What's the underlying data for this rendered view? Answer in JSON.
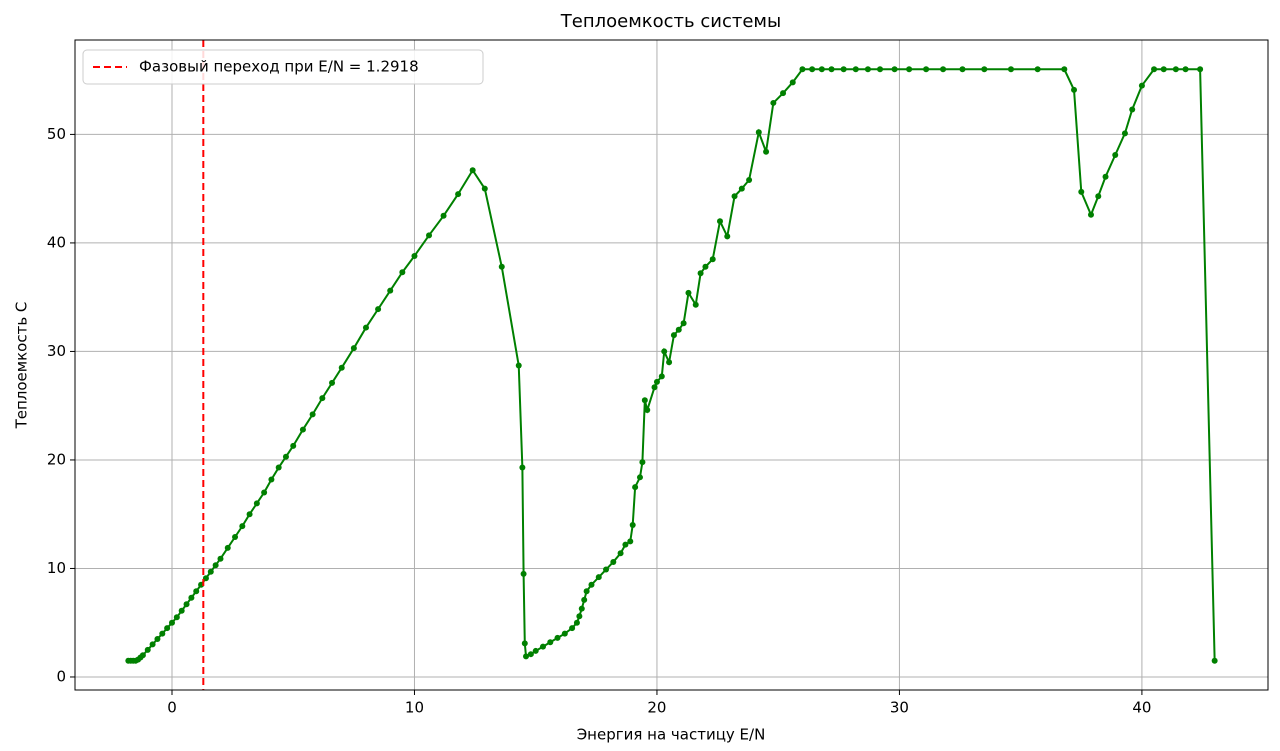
{
  "chart_data": {
    "type": "line",
    "title": "Теплоемкость системы",
    "x_label": "Энергия на частицу E/N",
    "y_label": "Теплоемкость C",
    "xlim": [
      -4.0,
      45.2
    ],
    "ylim": [
      -1.2,
      58.7
    ],
    "xticks": [
      0,
      10,
      20,
      30,
      40
    ],
    "yticks": [
      0,
      10,
      20,
      30,
      40,
      50
    ],
    "grid": true,
    "legend": "upper left",
    "vline": {
      "x": 1.2918,
      "name": "Фазовый переход при E/N = 1.2918",
      "color": "#ff0000"
    },
    "x": [
      -1.8,
      -1.7,
      -1.6,
      -1.5,
      -1.4,
      -1.3,
      -1.2,
      -1.0,
      -0.8,
      -0.6,
      -0.4,
      -0.2,
      0,
      0.2,
      0.4,
      0.6,
      0.8,
      1.0,
      1.2,
      1.4,
      1.6,
      1.8,
      2.0,
      2.3,
      2.6,
      2.9,
      3.2,
      3.5,
      3.8,
      4.1,
      4.4,
      4.7,
      5.0,
      5.4,
      5.8,
      6.2,
      6.6,
      7.0,
      7.5,
      8.0,
      8.5,
      9.0,
      9.5,
      10.0,
      10.6,
      11.2,
      11.8,
      12.4,
      12.9,
      13.6,
      14.3,
      14.45,
      14.5,
      14.55,
      14.6,
      14.8,
      15.0,
      15.3,
      15.6,
      15.9,
      16.2,
      16.5,
      16.7,
      16.8,
      16.9,
      17.0,
      17.1,
      17.3,
      17.6,
      17.9,
      18.2,
      18.5,
      18.7,
      18.9,
      19.0,
      19.1,
      19.3,
      19.4,
      19.5,
      19.6,
      19.9,
      20.0,
      20.2,
      20.3,
      20.5,
      20.7,
      20.9,
      21.1,
      21.3,
      21.6,
      21.8,
      22.0,
      22.3,
      22.6,
      22.9,
      23.2,
      23.5,
      23.8,
      24.2,
      24.5,
      24.8,
      25.2,
      25.6,
      26.0,
      26.4,
      26.8,
      27.2,
      27.7,
      28.2,
      28.7,
      29.2,
      29.8,
      30.4,
      31.1,
      31.8,
      32.6,
      33.5,
      34.6,
      35.7,
      36.8,
      37.2,
      37.5,
      37.9,
      38.2,
      38.5,
      38.9,
      39.3,
      39.6,
      40.0,
      40.5,
      40.9,
      41.4,
      41.8,
      42.4,
      43.0
    ],
    "series": [
      {
        "name": "C",
        "color": "#008000",
        "values": [
          1.5,
          1.5,
          1.5,
          1.5,
          1.6,
          1.8,
          2.0,
          2.5,
          3.0,
          3.5,
          4.0,
          4.5,
          5.0,
          5.5,
          6.1,
          6.7,
          7.3,
          7.9,
          8.5,
          9.1,
          9.7,
          10.3,
          10.9,
          11.9,
          12.9,
          13.9,
          15.0,
          16.0,
          17.0,
          18.2,
          19.3,
          20.3,
          21.3,
          22.8,
          24.2,
          25.7,
          27.1,
          28.5,
          30.3,
          32.2,
          33.9,
          35.6,
          37.3,
          38.8,
          40.7,
          42.5,
          44.5,
          46.7,
          45.0,
          37.8,
          28.7,
          19.3,
          9.5,
          3.1,
          1.9,
          2.1,
          2.4,
          2.8,
          3.2,
          3.6,
          4.0,
          4.5,
          5.0,
          5.6,
          6.3,
          7.1,
          7.9,
          8.5,
          9.2,
          9.9,
          10.6,
          11.4,
          12.2,
          12.5,
          14.0,
          17.5,
          18.4,
          19.8,
          25.5,
          24.6,
          26.7,
          27.2,
          27.7,
          30.0,
          29.0,
          31.5,
          32.0,
          32.6,
          35.4,
          34.3,
          37.2,
          37.8,
          38.5,
          42.0,
          40.6,
          44.3,
          45.0,
          45.8,
          50.2,
          48.4,
          52.9,
          53.8,
          54.8,
          56.0,
          56.0,
          56.0,
          56.0,
          56.0,
          56.0,
          56.0,
          56.0,
          56.0,
          56.0,
          56.0,
          56.0,
          56.0,
          56.0,
          56.0,
          56.0,
          56.0,
          54.1,
          44.7,
          42.6,
          44.3,
          46.1,
          48.1,
          50.1,
          52.3,
          54.5,
          56.0,
          56.0,
          56.0,
          56.0,
          56.0,
          1.5
        ]
      }
    ]
  }
}
